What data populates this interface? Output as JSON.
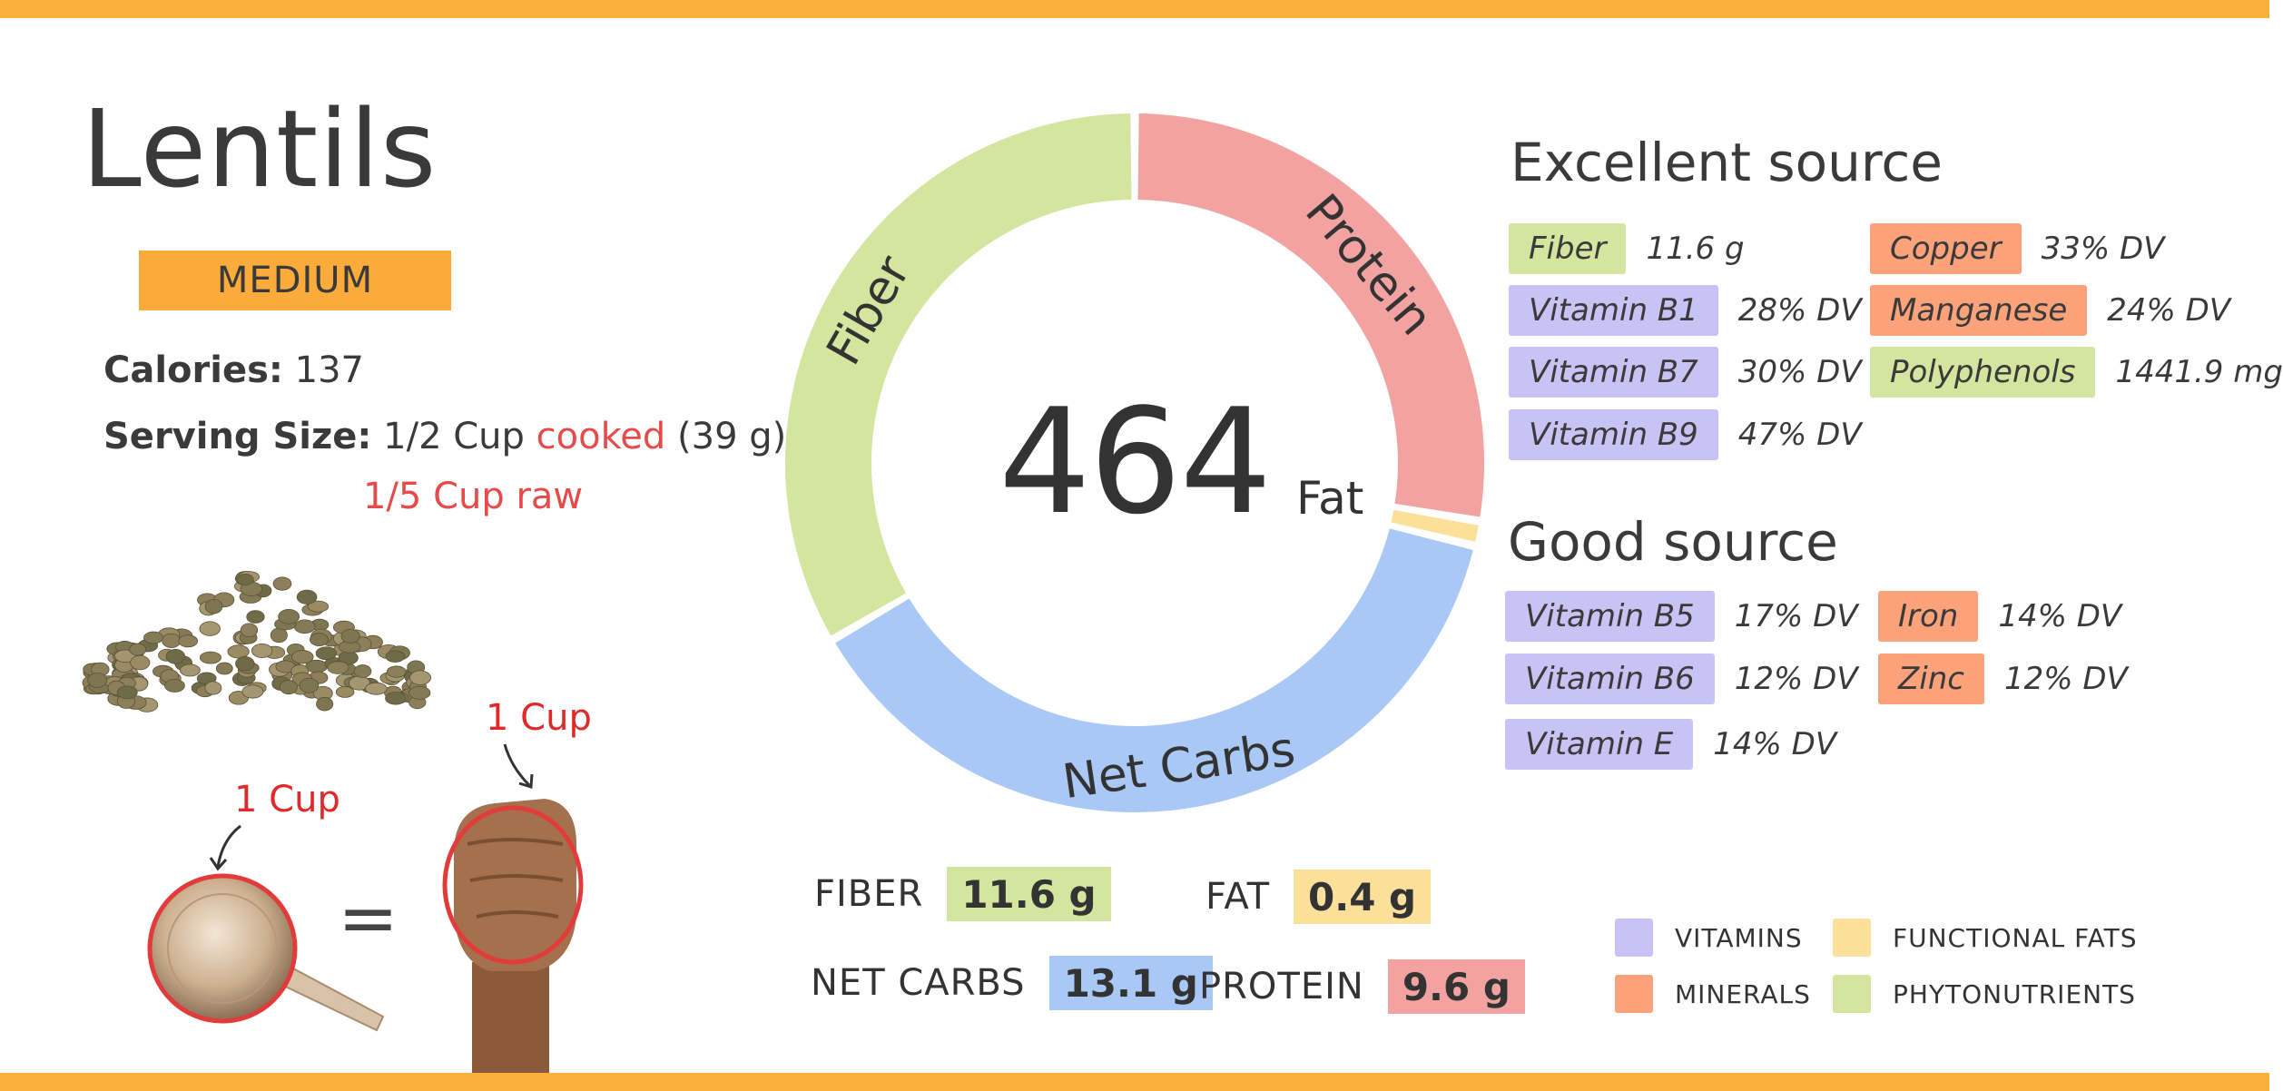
{
  "title": "Lentils",
  "badge": "MEDIUM",
  "calories": {
    "label": "Calories:",
    "value": "137"
  },
  "serving": {
    "label": "Serving Size:",
    "amount": "1/2 Cup",
    "state": "cooked",
    "grams": "(39 g)",
    "raw": "1/5 Cup raw"
  },
  "measure": {
    "cup_label": "1 Cup",
    "fist_label": "1 Cup",
    "equals": "="
  },
  "chart_data": {
    "type": "pie",
    "center_value": "464",
    "categories": [
      "Protein",
      "Fat",
      "Net Carbs",
      "Fiber"
    ],
    "values": [
      9.6,
      0.4,
      13.1,
      11.6
    ],
    "units": "g",
    "colors": [
      "#f2a3a1",
      "#fbe09a",
      "#a9c8f6",
      "#d3e59f"
    ],
    "fat_label": "Fat"
  },
  "macros": [
    {
      "label": "FIBER",
      "value": "11.6 g"
    },
    {
      "label": "FAT",
      "value": "0.4 g"
    },
    {
      "label": "NET CARBS",
      "value": "13.1 g"
    },
    {
      "label": "PROTEIN",
      "value": "9.6 g"
    }
  ],
  "excellent": {
    "title": "Excellent source",
    "items": [
      {
        "name": "Fiber",
        "value": "11.6 g",
        "kind": "phytonutrients"
      },
      {
        "name": "Vitamin B1",
        "value": "28% DV",
        "kind": "vitamins"
      },
      {
        "name": "Vitamin B7",
        "value": "30% DV",
        "kind": "vitamins"
      },
      {
        "name": "Vitamin B9",
        "value": "47% DV",
        "kind": "vitamins"
      },
      {
        "name": "Copper",
        "value": "33% DV",
        "kind": "minerals"
      },
      {
        "name": "Manganese",
        "value": "24% DV",
        "kind": "minerals"
      },
      {
        "name": "Polyphenols",
        "value": "1441.9 mg",
        "kind": "phytonutrients"
      }
    ]
  },
  "good": {
    "title": "Good source",
    "items": [
      {
        "name": "Vitamin B5",
        "value": "17% DV",
        "kind": "vitamins"
      },
      {
        "name": "Vitamin B6",
        "value": "12% DV",
        "kind": "vitamins"
      },
      {
        "name": "Vitamin E",
        "value": "14% DV",
        "kind": "vitamins"
      },
      {
        "name": "Iron",
        "value": "14% DV",
        "kind": "minerals"
      },
      {
        "name": "Zinc",
        "value": "12% DV",
        "kind": "minerals"
      }
    ]
  },
  "legend": [
    {
      "label": "VITAMINS",
      "color": "#c9c2f5"
    },
    {
      "label": "MINERALS",
      "color": "#fba27a"
    },
    {
      "label": "FUNCTIONAL FATS",
      "color": "#fbe09a"
    },
    {
      "label": "PHYTONUTRIENTS",
      "color": "#d3e59f"
    }
  ]
}
